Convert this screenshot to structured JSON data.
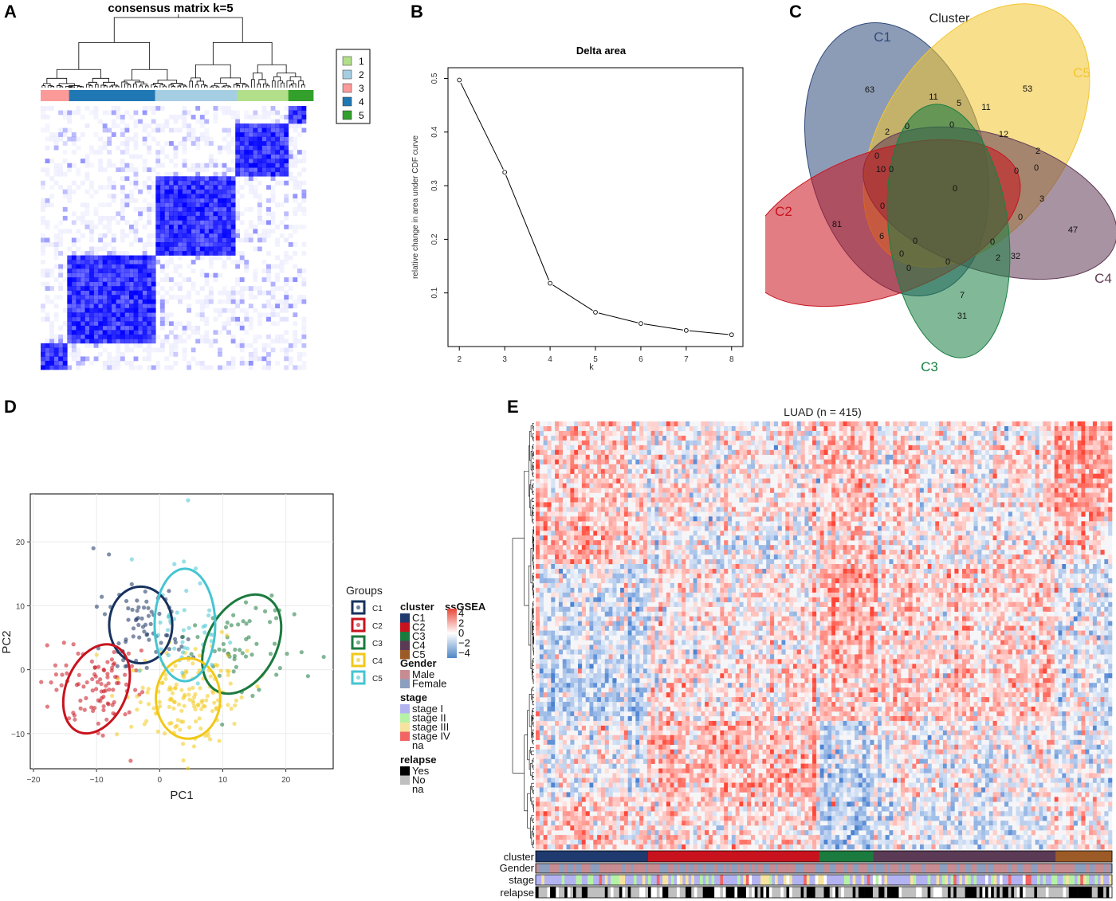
{
  "panels": {
    "A": {
      "letter": "A",
      "title": "consensus matrix k=5",
      "legend": [
        {
          "label": "1",
          "color": "#b2df8a"
        },
        {
          "label": "2",
          "color": "#a6cee3"
        },
        {
          "label": "3",
          "color": "#fb9a99"
        },
        {
          "label": "4",
          "color": "#1f78b4"
        },
        {
          "label": "5",
          "color": "#33a02c"
        }
      ],
      "cluster_bar": [
        {
          "cluster": "3",
          "fraction": 0.107
        },
        {
          "cluster": "4",
          "fraction": 0.324
        },
        {
          "cluster": "2",
          "fraction": 0.309
        },
        {
          "cluster": "1",
          "fraction": 0.193
        },
        {
          "cluster": "5",
          "fraction": 0.094
        }
      ],
      "block_color": "#0000ff"
    },
    "B": {
      "letter": "B",
      "chart_title": "Delta area",
      "xlabel": "k",
      "ylabel": "relative change in area under CDF curve"
    },
    "C": {
      "letter": "C",
      "title": "Cluster",
      "sets": [
        {
          "label": "C1",
          "color": "#2f4a7a"
        },
        {
          "label": "C2",
          "color": "#c8131e"
        },
        {
          "label": "C3",
          "color": "#1a7f43"
        },
        {
          "label": "C4",
          "color": "#603a55"
        },
        {
          "label": "C5",
          "color": "#f3c52e"
        }
      ],
      "counts": [
        "63",
        "53",
        "81",
        "47",
        "31",
        "11",
        "5",
        "11",
        "2",
        "0",
        "0",
        "12",
        "10",
        "0",
        "0",
        "0",
        "2",
        "0",
        "0",
        "3",
        "0",
        "6",
        "0",
        "0",
        "0",
        "0",
        "0",
        "2",
        "32",
        "0",
        "7"
      ]
    },
    "D": {
      "letter": "D",
      "xlabel": "PC1",
      "ylabel": "PC2",
      "legend_title": "Groups",
      "groups": [
        {
          "label": "C1",
          "color": "#17325e"
        },
        {
          "label": "C2",
          "color": "#c8131e"
        },
        {
          "label": "C3",
          "color": "#1b7a3e"
        },
        {
          "label": "C4",
          "color": "#f2c818"
        },
        {
          "label": "C5",
          "color": "#45c5d2"
        }
      ]
    },
    "E": {
      "letter": "E",
      "title": "LUAD (n = 415)",
      "annotation_rows": [
        "cluster",
        "Gender",
        "stage",
        "relapse"
      ],
      "legend": {
        "cluster": {
          "title": "cluster",
          "items": [
            {
              "label": "C1",
              "color": "#1e3a6e"
            },
            {
              "label": "C2",
              "color": "#c8131e"
            },
            {
              "label": "C3",
              "color": "#1b7a3e"
            },
            {
              "label": "C4",
              "color": "#5a3a55"
            },
            {
              "label": "C5",
              "color": "#9c5a26"
            }
          ]
        },
        "gender": {
          "title": "Gender",
          "items": [
            {
              "label": "Male",
              "color": "#c78c92"
            },
            {
              "label": "Female",
              "color": "#8c9fbf"
            }
          ]
        },
        "stage": {
          "title": "stage",
          "items": [
            {
              "label": "stage I",
              "color": "#b3b3f2"
            },
            {
              "label": "stage II",
              "color": "#b6f2a6"
            },
            {
              "label": "stage III",
              "color": "#f6e3a0"
            },
            {
              "label": "stage IV",
              "color": "#f26565"
            },
            {
              "label": "na",
              "color": "#ffffff"
            }
          ]
        },
        "relapse": {
          "title": "relapse",
          "items": [
            {
              "label": "Yes",
              "color": "#000000"
            },
            {
              "label": "No",
              "color": "#bfbfbf"
            },
            {
              "label": "na",
              "color": "#ffffff"
            }
          ]
        },
        "ssgsea": {
          "title": "ssGSEA",
          "ticks": [
            "4",
            "2",
            "0",
            "−2",
            "−4"
          ]
        }
      }
    }
  },
  "chart_data": [
    {
      "type": "heatmap",
      "panel": "A",
      "title": "consensus matrix k=5",
      "legend": [
        "1",
        "2",
        "3",
        "4",
        "5"
      ]
    },
    {
      "type": "line",
      "panel": "B",
      "title": "Delta area",
      "xlabel": "k",
      "ylabel": "relative change in area under CDF curve",
      "x": [
        2,
        3,
        4,
        5,
        6,
        7,
        8
      ],
      "y": [
        0.497,
        0.325,
        0.118,
        0.064,
        0.043,
        0.03,
        0.022
      ],
      "xticks": [
        "2",
        "3",
        "4",
        "5",
        "6",
        "7",
        "8"
      ],
      "yticks": [
        "0.1",
        "0.2",
        "0.3",
        "0.4",
        "0.5"
      ],
      "xlim": [
        1.75,
        8.25
      ],
      "ylim": [
        0.0,
        0.52
      ]
    },
    {
      "type": "scatter",
      "panel": "D",
      "xlabel": "PC1",
      "ylabel": "PC2",
      "xticks": [
        "−20",
        "−10",
        "0",
        "10",
        "20"
      ],
      "yticks": [
        "−10",
        "0",
        "10",
        "20"
      ],
      "xlim": [
        -20.5,
        27.5
      ],
      "ylim": [
        -15.5,
        27.5
      ],
      "series": [
        {
          "name": "C1",
          "center": [
            -3,
            7
          ],
          "sd": [
            3.4,
            3.2
          ],
          "n": 70,
          "ellipse": {
            "rx": 5,
            "ry": 6,
            "angle": 0
          }
        },
        {
          "name": "C2",
          "center": [
            -10,
            -3
          ],
          "sd": [
            3.5,
            3.2
          ],
          "n": 95,
          "ellipse": {
            "rx": 4.8,
            "ry": 7.3,
            "angle": 23
          }
        },
        {
          "name": "C3",
          "center": [
            13,
            4
          ],
          "sd": [
            3.8,
            4.0
          ],
          "n": 55,
          "ellipse": {
            "rx": 5.5,
            "ry": 8.3,
            "angle": 28
          }
        },
        {
          "name": "C4",
          "center": [
            4.5,
            -4.5
          ],
          "sd": [
            5.0,
            3.6
          ],
          "n": 150,
          "ellipse": {
            "rx": 5.1,
            "ry": 6.3,
            "angle": 0
          }
        },
        {
          "name": "C5",
          "center": [
            4,
            7
          ],
          "sd": [
            3.2,
            4.2
          ],
          "n": 45,
          "ellipse": {
            "rx": 4.8,
            "ry": 8.8,
            "angle": 0
          }
        }
      ],
      "outliers": [
        [
          4.5,
          26.5
        ],
        [
          26,
          2
        ],
        [
          23.5,
          -1
        ],
        [
          -10.5,
          19
        ]
      ]
    },
    {
      "type": "heatmap",
      "panel": "E",
      "title": "LUAD (n = 415)",
      "annotation_rows": [
        "cluster",
        "Gender",
        "stage",
        "relapse"
      ],
      "cluster_fractions": [
        {
          "cluster": "C1",
          "fraction": 0.195
        },
        {
          "cluster": "C2",
          "fraction": 0.297
        },
        {
          "cluster": "C3",
          "fraction": 0.094
        },
        {
          "cluster": "C4",
          "fraction": 0.316
        },
        {
          "cluster": "C5",
          "fraction": 0.098
        }
      ],
      "color_scale": {
        "min": -4,
        "max": 4,
        "low": "#4575b4",
        "mid": "#ffffff",
        "high": "#d7301f"
      }
    }
  ]
}
